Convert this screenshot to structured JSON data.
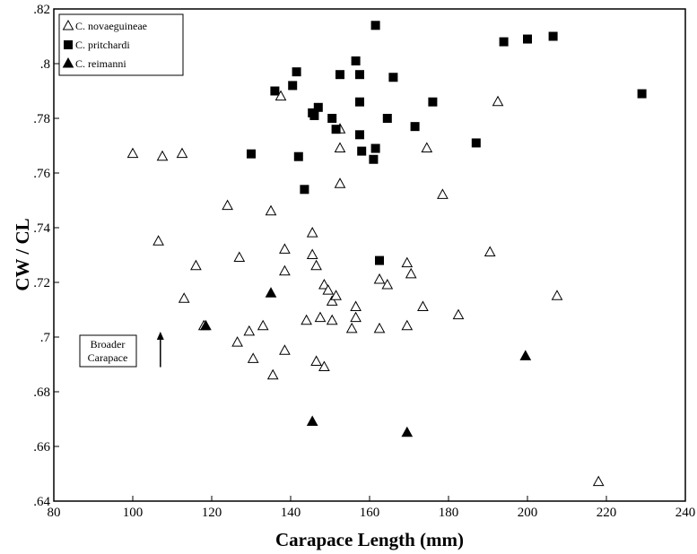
{
  "chart_data": {
    "type": "scatter",
    "xlabel": "Carapace Length (mm)",
    "ylabel": "CW / CL",
    "xlim": [
      80,
      240
    ],
    "ylim": [
      0.64,
      0.82
    ],
    "x_ticks": [
      80,
      100,
      120,
      140,
      160,
      180,
      200,
      220,
      240
    ],
    "x_tick_labels": [
      "80",
      "100",
      "120",
      "140",
      "160",
      "180",
      "200",
      "220",
      "240"
    ],
    "y_ticks": [
      0.64,
      0.66,
      0.68,
      0.7,
      0.72,
      0.74,
      0.76,
      0.78,
      0.8,
      0.82
    ],
    "y_tick_labels": [
      ".64",
      ".66",
      ".68",
      ".7",
      ".72",
      ".74",
      ".76",
      ".78",
      ".8",
      ".82"
    ],
    "grid": false,
    "legend_position": "top-left",
    "annotation": {
      "lines": [
        "Broader",
        "Carapace"
      ],
      "arrow": "up",
      "x": 107,
      "y_from": 0.689,
      "y_to": 0.701
    },
    "series": [
      {
        "name": "C. novaeguineae",
        "marker": "open-triangle",
        "points": [
          [
            100,
            0.767
          ],
          [
            107.5,
            0.766
          ],
          [
            112.5,
            0.767
          ],
          [
            106.5,
            0.735
          ],
          [
            113,
            0.714
          ],
          [
            116,
            0.726
          ],
          [
            118,
            0.704
          ],
          [
            124,
            0.748
          ],
          [
            127,
            0.729
          ],
          [
            126.5,
            0.698
          ],
          [
            129.5,
            0.702
          ],
          [
            130.5,
            0.692
          ],
          [
            133,
            0.704
          ],
          [
            135,
            0.746
          ],
          [
            135.5,
            0.686
          ],
          [
            137.5,
            0.788
          ],
          [
            138.5,
            0.732
          ],
          [
            138.5,
            0.724
          ],
          [
            138.5,
            0.695
          ],
          [
            144,
            0.706
          ],
          [
            145.5,
            0.738
          ],
          [
            145.5,
            0.73
          ],
          [
            146.5,
            0.726
          ],
          [
            146.5,
            0.691
          ],
          [
            147.5,
            0.707
          ],
          [
            148.5,
            0.719
          ],
          [
            148.5,
            0.689
          ],
          [
            149.5,
            0.717
          ],
          [
            150.5,
            0.713
          ],
          [
            150.5,
            0.706
          ],
          [
            151.5,
            0.715
          ],
          [
            152.5,
            0.776
          ],
          [
            152.5,
            0.769
          ],
          [
            152.5,
            0.756
          ],
          [
            155.5,
            0.703
          ],
          [
            156.5,
            0.711
          ],
          [
            156.5,
            0.707
          ],
          [
            162.5,
            0.721
          ],
          [
            162.5,
            0.703
          ],
          [
            164.5,
            0.719
          ],
          [
            169.5,
            0.727
          ],
          [
            169.5,
            0.704
          ],
          [
            170.5,
            0.723
          ],
          [
            173.5,
            0.711
          ],
          [
            174.5,
            0.769
          ],
          [
            178.5,
            0.752
          ],
          [
            182.5,
            0.708
          ],
          [
            190.5,
            0.731
          ],
          [
            192.5,
            0.786
          ],
          [
            207.5,
            0.715
          ],
          [
            218,
            0.647
          ]
        ]
      },
      {
        "name": "C. pritchardi",
        "marker": "filled-square",
        "points": [
          [
            130,
            0.767
          ],
          [
            136,
            0.79
          ],
          [
            140.5,
            0.792
          ],
          [
            141.5,
            0.797
          ],
          [
            142,
            0.766
          ],
          [
            143.5,
            0.754
          ],
          [
            145.5,
            0.782
          ],
          [
            146,
            0.781
          ],
          [
            147,
            0.784
          ],
          [
            150.5,
            0.78
          ],
          [
            151.5,
            0.776
          ],
          [
            152.5,
            0.796
          ],
          [
            156.5,
            0.801
          ],
          [
            157.5,
            0.796
          ],
          [
            157.5,
            0.786
          ],
          [
            157.5,
            0.774
          ],
          [
            158,
            0.768
          ],
          [
            161,
            0.765
          ],
          [
            161.5,
            0.769
          ],
          [
            161.5,
            0.814
          ],
          [
            162.5,
            0.728
          ],
          [
            164.5,
            0.78
          ],
          [
            166,
            0.795
          ],
          [
            171.5,
            0.777
          ],
          [
            176,
            0.786
          ],
          [
            187,
            0.771
          ],
          [
            194,
            0.808
          ],
          [
            200,
            0.809
          ],
          [
            206.5,
            0.81
          ],
          [
            229,
            0.789
          ]
        ]
      },
      {
        "name": "C. reimanni",
        "marker": "filled-triangle",
        "points": [
          [
            118.5,
            0.704
          ],
          [
            135,
            0.716
          ],
          [
            145.5,
            0.669
          ],
          [
            169.5,
            0.665
          ],
          [
            199.5,
            0.693
          ]
        ]
      }
    ]
  }
}
